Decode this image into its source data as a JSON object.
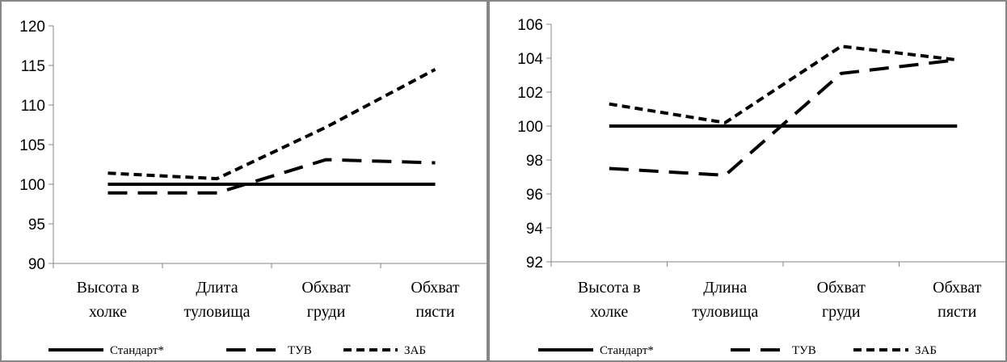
{
  "chart_data": [
    {
      "type": "line",
      "categories": [
        [
          "Высота в",
          "холке"
        ],
        [
          "Длита",
          "туловища"
        ],
        [
          "Обхват",
          "груди"
        ],
        [
          "Обхват",
          "пясти"
        ]
      ],
      "ylim": [
        90,
        120
      ],
      "yticks": [
        90,
        95,
        100,
        105,
        110,
        115,
        120
      ],
      "grid": false,
      "legend": "bottom",
      "series": [
        {
          "name": "Стандарт*",
          "values": [
            100,
            100,
            100,
            100
          ],
          "style": "solid"
        },
        {
          "name": "ТУВ",
          "values": [
            98.9,
            98.9,
            103.1,
            102.7
          ],
          "style": "long-dash"
        },
        {
          "name": "ЗАБ",
          "values": [
            101.4,
            100.7,
            107.2,
            114.5
          ],
          "style": "short-dash"
        }
      ]
    },
    {
      "type": "line",
      "categories": [
        [
          "Высота в",
          "холке"
        ],
        [
          "Длина",
          "туловища"
        ],
        [
          "Обхват",
          "груди"
        ],
        [
          "Обхват",
          "пясти"
        ]
      ],
      "ylim": [
        92,
        106
      ],
      "yticks": [
        92,
        94,
        96,
        98,
        100,
        102,
        104,
        106
      ],
      "grid": false,
      "legend": "bottom",
      "series": [
        {
          "name": "Стандарт*",
          "values": [
            100,
            100,
            100,
            100
          ],
          "style": "solid"
        },
        {
          "name": "ТУВ",
          "values": [
            97.5,
            97.1,
            103.1,
            103.9
          ],
          "style": "long-dash"
        },
        {
          "name": "ЗАБ",
          "values": [
            101.3,
            100.2,
            104.7,
            103.9
          ],
          "style": "short-dash"
        }
      ]
    }
  ],
  "colors": {
    "line": "#000000",
    "axis": "#868686",
    "border": "#868686"
  }
}
